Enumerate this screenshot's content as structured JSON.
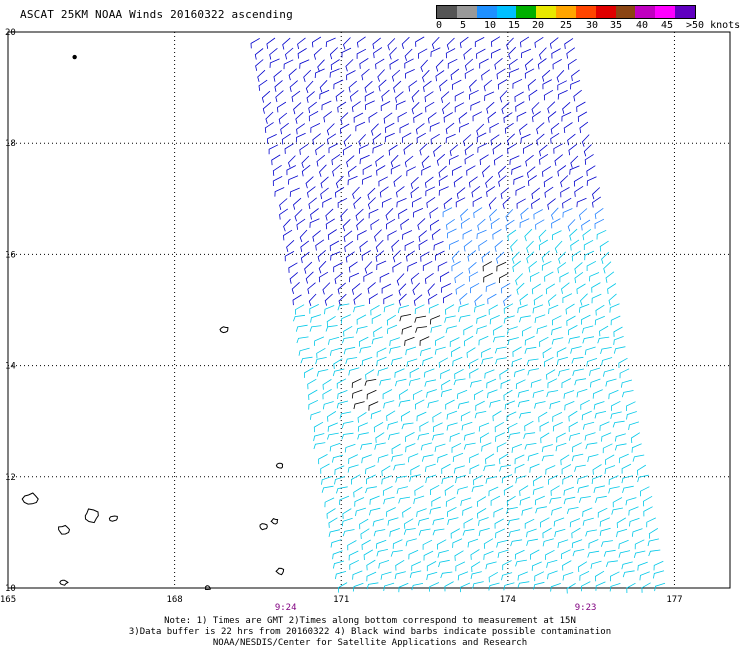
{
  "title": "ASCAT 25KM NOAA Winds 20160322 ascending",
  "colorbar": {
    "colors": [
      "#555555",
      "#999999",
      "#1e90ff",
      "#00c0ff",
      "#00b000",
      "#e8e800",
      "#ffa500",
      "#ff4500",
      "#e00000",
      "#8b4513",
      "#c000c0",
      "#ff00ff",
      "#6000c0"
    ],
    "labels": [
      "0",
      "5",
      "10",
      "15",
      "20",
      "25",
      "30",
      "35",
      "40",
      "45",
      ">50 knots"
    ]
  },
  "axes": {
    "lon_ticks": [
      "165",
      "168",
      "171",
      "174",
      "177"
    ],
    "lat_ticks": [
      "10",
      "12",
      "14",
      "16",
      "18",
      "20"
    ]
  },
  "times": [
    "9:24",
    "9:23"
  ],
  "notes": [
    "Note: 1) Times are GMT 2)Times along bottom correspond to measurement at 15N",
    "3)Data buffer is 22 hrs from 20160322 4) Black wind barbs indicate possible contamination",
    "NOAA/NESDIS/Center for Satellite Applications and Research"
  ],
  "map_data": {
    "lon_range": [
      165,
      178
    ],
    "lat_range": [
      10,
      20
    ],
    "swath_left_edge": [
      [
        169.4,
        20
      ],
      [
        171.0,
        10
      ]
    ],
    "swath_right_edge": [
      [
        175.3,
        20
      ],
      [
        177.0,
        10
      ]
    ],
    "wind_colors": {
      "north": "#0000cd",
      "mid": "#2080ff",
      "south": "#00c8e8",
      "contaminated": "#000000"
    },
    "land_color": "#000000"
  }
}
